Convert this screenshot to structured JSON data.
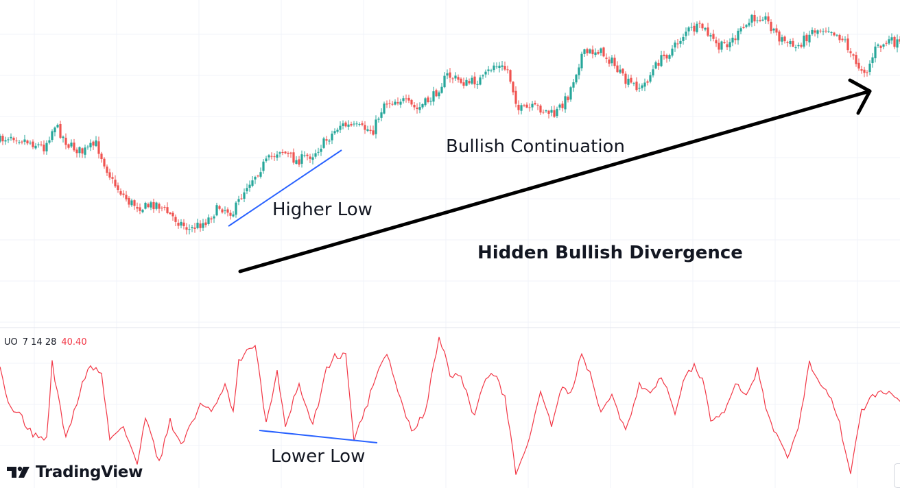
{
  "annotations": {
    "continuation": "Bullish Continuation",
    "higher_low": "Higher Low",
    "hidden_divergence": "Hidden Bullish Divergence",
    "lower_low": "Lower Low"
  },
  "oscillator": {
    "name": "UO",
    "params": "7 14 28",
    "value": "40.40"
  },
  "branding": {
    "logo_text": "TradingView"
  },
  "colors": {
    "up_candle": "#26a69a",
    "down_candle": "#ef5350",
    "oscillator_line": "#f23645",
    "trend_line": "#2962ff",
    "arrow": "#000000",
    "grid": "#f0f3fa"
  },
  "chart_data": [
    {
      "type": "candlestick",
      "title": "",
      "description_series": "close",
      "x": [
        0,
        1,
        2,
        3,
        4,
        5,
        6,
        7,
        8,
        9,
        10,
        11,
        12,
        13,
        14,
        15,
        16,
        17,
        18,
        19,
        20,
        21,
        22,
        23,
        24,
        25,
        26,
        27,
        28,
        29,
        30,
        31,
        32,
        33,
        34,
        35,
        36,
        37,
        38,
        39,
        40,
        41,
        42,
        43,
        44,
        45,
        46,
        47,
        48,
        49,
        50,
        51,
        52,
        53,
        54,
        55,
        56,
        57,
        58,
        59,
        60,
        61,
        62,
        63,
        64,
        65,
        66,
        67,
        68,
        69,
        70,
        71,
        72,
        73,
        74,
        75,
        76,
        77,
        78,
        79,
        80,
        81,
        82,
        83,
        84,
        85,
        86,
        87,
        88,
        89,
        90,
        91,
        92,
        93,
        94,
        95,
        96,
        97,
        98,
        99,
        100,
        101,
        102,
        103,
        104,
        105,
        106,
        107,
        108,
        109,
        110,
        111,
        112,
        113,
        114,
        115,
        116,
        117,
        118,
        119,
        120,
        121,
        122,
        123,
        124,
        125,
        126,
        127,
        128,
        129,
        130,
        131,
        132,
        133,
        134,
        135,
        136,
        137,
        138,
        139,
        140,
        141,
        142,
        143,
        144,
        145,
        146,
        147,
        148,
        149,
        150,
        151,
        152,
        153,
        154,
        155,
        156,
        157,
        158,
        159,
        160,
        161,
        162,
        163,
        164,
        165,
        166,
        167,
        168,
        169,
        170,
        171,
        172,
        173,
        174,
        175,
        176,
        177,
        178,
        179,
        180,
        181,
        182,
        183,
        184,
        185,
        186,
        187,
        188,
        189,
        190,
        191,
        192,
        193,
        194,
        195,
        196,
        197,
        198,
        199,
        200,
        201,
        202,
        203,
        204,
        205,
        206,
        207,
        208,
        209,
        210,
        211,
        212,
        213,
        214,
        215,
        216,
        217,
        218,
        219,
        220,
        221,
        222,
        223,
        224,
        225,
        226,
        227,
        228,
        229,
        230,
        231,
        232,
        233,
        234,
        235,
        236,
        237,
        238,
        239,
        240,
        241,
        242,
        243,
        244,
        245,
        246,
        247,
        248,
        249,
        250,
        251,
        252,
        253,
        254,
        255,
        256,
        257,
        258,
        259,
        260,
        261,
        262,
        263,
        264,
        265,
        266,
        267,
        268,
        269,
        270,
        271,
        272,
        273,
        274,
        275,
        276,
        277,
        278,
        279,
        280,
        281,
        282,
        283,
        284,
        285,
        286,
        287,
        288,
        289,
        290,
        291,
        292,
        293,
        294,
        295,
        296,
        297,
        298,
        299,
        300,
        301,
        302,
        303,
        304,
        305,
        306,
        307,
        308,
        309,
        310,
        311,
        312,
        313,
        314,
        315,
        316,
        317,
        318,
        319,
        320,
        321,
        322,
        323,
        324,
        325,
        326,
        327,
        328
      ],
      "anchors": [
        [
          0,
          205
        ],
        [
          4,
          197
        ],
        [
          10,
          206
        ],
        [
          16,
          215
        ],
        [
          20,
          182
        ],
        [
          25,
          212
        ],
        [
          30,
          222
        ],
        [
          35,
          210
        ],
        [
          41,
          265
        ],
        [
          47,
          295
        ],
        [
          52,
          303
        ],
        [
          57,
          297
        ],
        [
          64,
          320
        ],
        [
          69,
          335
        ],
        [
          75,
          323
        ],
        [
          80,
          302
        ],
        [
          85,
          310
        ],
        [
          90,
          270
        ],
        [
          96,
          240
        ],
        [
          102,
          218
        ],
        [
          108,
          235
        ],
        [
          114,
          225
        ],
        [
          120,
          200
        ],
        [
          124,
          182
        ],
        [
          130,
          186
        ],
        [
          136,
          190
        ],
        [
          140,
          150
        ],
        [
          146,
          145
        ],
        [
          152,
          160
        ],
        [
          158,
          140
        ],
        [
          163,
          110
        ],
        [
          170,
          122
        ],
        [
          176,
          115
        ],
        [
          180,
          95
        ],
        [
          185,
          102
        ],
        [
          189,
          160
        ],
        [
          196,
          157
        ],
        [
          202,
          168
        ],
        [
          207,
          140
        ],
        [
          212,
          80
        ],
        [
          218,
          73
        ],
        [
          223,
          90
        ],
        [
          228,
          120
        ],
        [
          234,
          128
        ],
        [
          240,
          90
        ],
        [
          246,
          68
        ],
        [
          250,
          45
        ],
        [
          256,
          40
        ],
        [
          262,
          70
        ],
        [
          268,
          55
        ],
        [
          274,
          28
        ],
        [
          278,
          22
        ],
        [
          284,
          55
        ],
        [
          290,
          70
        ],
        [
          296,
          45
        ],
        [
          302,
          40
        ],
        [
          308,
          60
        ],
        [
          312,
          95
        ],
        [
          316,
          103
        ],
        [
          319,
          72
        ],
        [
          324,
          60
        ],
        [
          328,
          65
        ]
      ],
      "axes": "not labeled"
    },
    {
      "type": "line",
      "title": "UO 7 14 28",
      "series": [
        {
          "name": "UO",
          "anchors": [
            [
              0,
              540
            ],
            [
              3,
              590
            ],
            [
              8,
              610
            ],
            [
              12,
              635
            ],
            [
              17,
              640
            ],
            [
              19,
              530
            ],
            [
              24,
              640
            ],
            [
              30,
              560
            ],
            [
              33,
              534
            ],
            [
              37,
              545
            ],
            [
              40,
              640
            ],
            [
              45,
              625
            ],
            [
              50,
              675
            ],
            [
              53,
              610
            ],
            [
              58,
              675
            ],
            [
              62,
              615
            ],
            [
              66,
              650
            ],
            [
              70,
              615
            ],
            [
              73,
              590
            ],
            [
              77,
              600
            ],
            [
              82,
              560
            ],
            [
              85,
              600
            ],
            [
              87,
              525
            ],
            [
              93,
              500
            ],
            [
              97,
              620
            ],
            [
              101,
              540
            ],
            [
              104,
              620
            ],
            [
              109,
              560
            ],
            [
              111,
              590
            ],
            [
              114,
              620
            ],
            [
              119,
              540
            ],
            [
              122,
              520
            ],
            [
              126,
              520
            ],
            [
              129,
              640
            ],
            [
              133,
              600
            ],
            [
              137,
              550
            ],
            [
              141,
              516
            ],
            [
              145,
              570
            ],
            [
              150,
              630
            ],
            [
              155,
              600
            ],
            [
              160,
              490
            ],
            [
              164,
              545
            ],
            [
              168,
              550
            ],
            [
              173,
              610
            ],
            [
              176,
              560
            ],
            [
              180,
              545
            ],
            [
              184,
              580
            ],
            [
              188,
              690
            ],
            [
              193,
              640
            ],
            [
              197,
              570
            ],
            [
              201,
              620
            ],
            [
              205,
              560
            ],
            [
              208,
              575
            ],
            [
              212,
              515
            ],
            [
              216,
              555
            ],
            [
              219,
              600
            ],
            [
              223,
              580
            ],
            [
              228,
              630
            ],
            [
              233,
              560
            ],
            [
              237,
              570
            ],
            [
              241,
              550
            ],
            [
              246,
              600
            ],
            [
              249,
              560
            ],
            [
              253,
              530
            ],
            [
              256,
              555
            ],
            [
              259,
              610
            ],
            [
              264,
              600
            ],
            [
              268,
              560
            ],
            [
              272,
              580
            ],
            [
              276,
              540
            ],
            [
              280,
              610
            ],
            [
              284,
              640
            ],
            [
              287,
              670
            ],
            [
              291,
              620
            ],
            [
              295,
              530
            ],
            [
              299,
              560
            ],
            [
              303,
              580
            ],
            [
              306,
              620
            ],
            [
              310,
              690
            ],
            [
              314,
              600
            ],
            [
              318,
              580
            ],
            [
              322,
              570
            ],
            [
              326,
              578
            ],
            [
              328,
              590
            ]
          ]
        }
      ],
      "axes": "not labeled"
    }
  ]
}
